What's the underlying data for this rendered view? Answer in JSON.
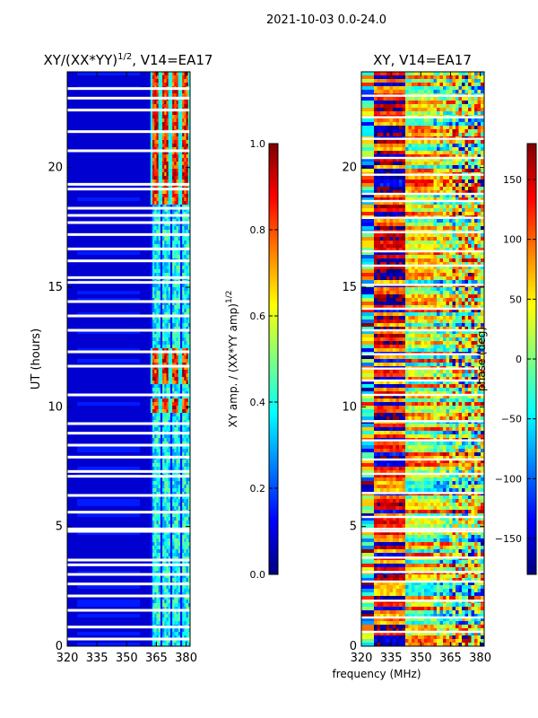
{
  "suptitle": "2021-10-03 0.0-24.0",
  "xlabel_shared": "frequency (MHz)",
  "colors": {
    "jet": [
      "#00007f",
      "#0000ff",
      "#007fff",
      "#00ffff",
      "#7fff7f",
      "#ffff00",
      "#ff7f00",
      "#ff0000",
      "#7f0000"
    ],
    "gap": "#ffffff"
  },
  "chart_data": [
    {
      "type": "heatmap",
      "title_main": "XY/(XX*YY)",
      "title_sup": "1/2",
      "title_suffix": ", V14=EA17",
      "xlabel": "",
      "ylabel": "UT (hours)",
      "xlim": [
        320,
        382
      ],
      "ylim": [
        0,
        24
      ],
      "xticks": [
        "320",
        "335",
        "350",
        "365",
        "380"
      ],
      "xtick_values": [
        320,
        335,
        350,
        365,
        380
      ],
      "yticks": [
        "0",
        "5",
        "10",
        "15",
        "20"
      ],
      "ytick_values": [
        0,
        5,
        10,
        15,
        20
      ],
      "colorbar": {
        "label_main": "XY amp. / (XX*YY amp)",
        "label_sup": "1/2",
        "range": [
          0.0,
          1.0
        ],
        "ticks": [
          "0.0",
          "0.2",
          "0.4",
          "0.6",
          "0.8",
          "1.0"
        ],
        "tick_values": [
          0.0,
          0.2,
          0.4,
          0.6,
          0.8,
          1.0
        ]
      },
      "background_value": 0.08,
      "bands": [
        {
          "fmin": 320,
          "fmax": 362,
          "value": 0.08
        },
        {
          "fmin": 362,
          "fmax": 382,
          "value": 0.35
        }
      ],
      "hot_hours": [
        [
          9.8,
          10.3
        ],
        [
          10.9,
          12.5
        ],
        [
          18.5,
          24
        ]
      ],
      "gap_hours": [
        0.3,
        0.8,
        1.5,
        2.1,
        2.6,
        3.0,
        3.4,
        3.6,
        4.8,
        4.9,
        5.6,
        6.3,
        7.1,
        7.3,
        7.9,
        8.4,
        8.9,
        9.3,
        10.5,
        11.7,
        12.3,
        13.2,
        13.8,
        14.4,
        15.2,
        15.4,
        16.1,
        16.6,
        17.2,
        17.7,
        18.0,
        18.3,
        19.1,
        19.3,
        20.7,
        21.5,
        22.4,
        22.9,
        23.3
      ]
    },
    {
      "type": "heatmap",
      "title_main": "XY, V14=EA17",
      "xlabel": "",
      "ylabel": "",
      "xlim": [
        320,
        382
      ],
      "ylim": [
        0,
        24
      ],
      "xticks": [
        "320",
        "335",
        "350",
        "365",
        "380"
      ],
      "xtick_values": [
        320,
        335,
        350,
        365,
        380
      ],
      "yticks": [
        "0",
        "5",
        "10",
        "15",
        "20"
      ],
      "ytick_values": [
        0,
        5,
        10,
        15,
        20
      ],
      "colorbar": {
        "label_main": "phase (deg)",
        "range": [
          -180,
          180
        ],
        "ticks": [
          "−150",
          "−100",
          "−50",
          "0",
          "50",
          "100",
          "150"
        ],
        "tick_values": [
          -150,
          -100,
          -50,
          0,
          50,
          100,
          150
        ]
      },
      "description_values": "phase varies with frequency: red near 330-340 MHz, green/yellow near 350 MHz, mixed elsewhere",
      "gap_hours": [
        0.6,
        1.2,
        1.9,
        2.7,
        3.1,
        3.7,
        4.8,
        4.9,
        5.4,
        6.4,
        7.2,
        7.8,
        8.6,
        9.4,
        10.5,
        11.1,
        11.6,
        12.2,
        13.2,
        14.1,
        15.1,
        15.9,
        16.5,
        17.3,
        17.9,
        18.6,
        18.9,
        19.7,
        20.4,
        21.2,
        22.1,
        23.0
      ]
    }
  ]
}
